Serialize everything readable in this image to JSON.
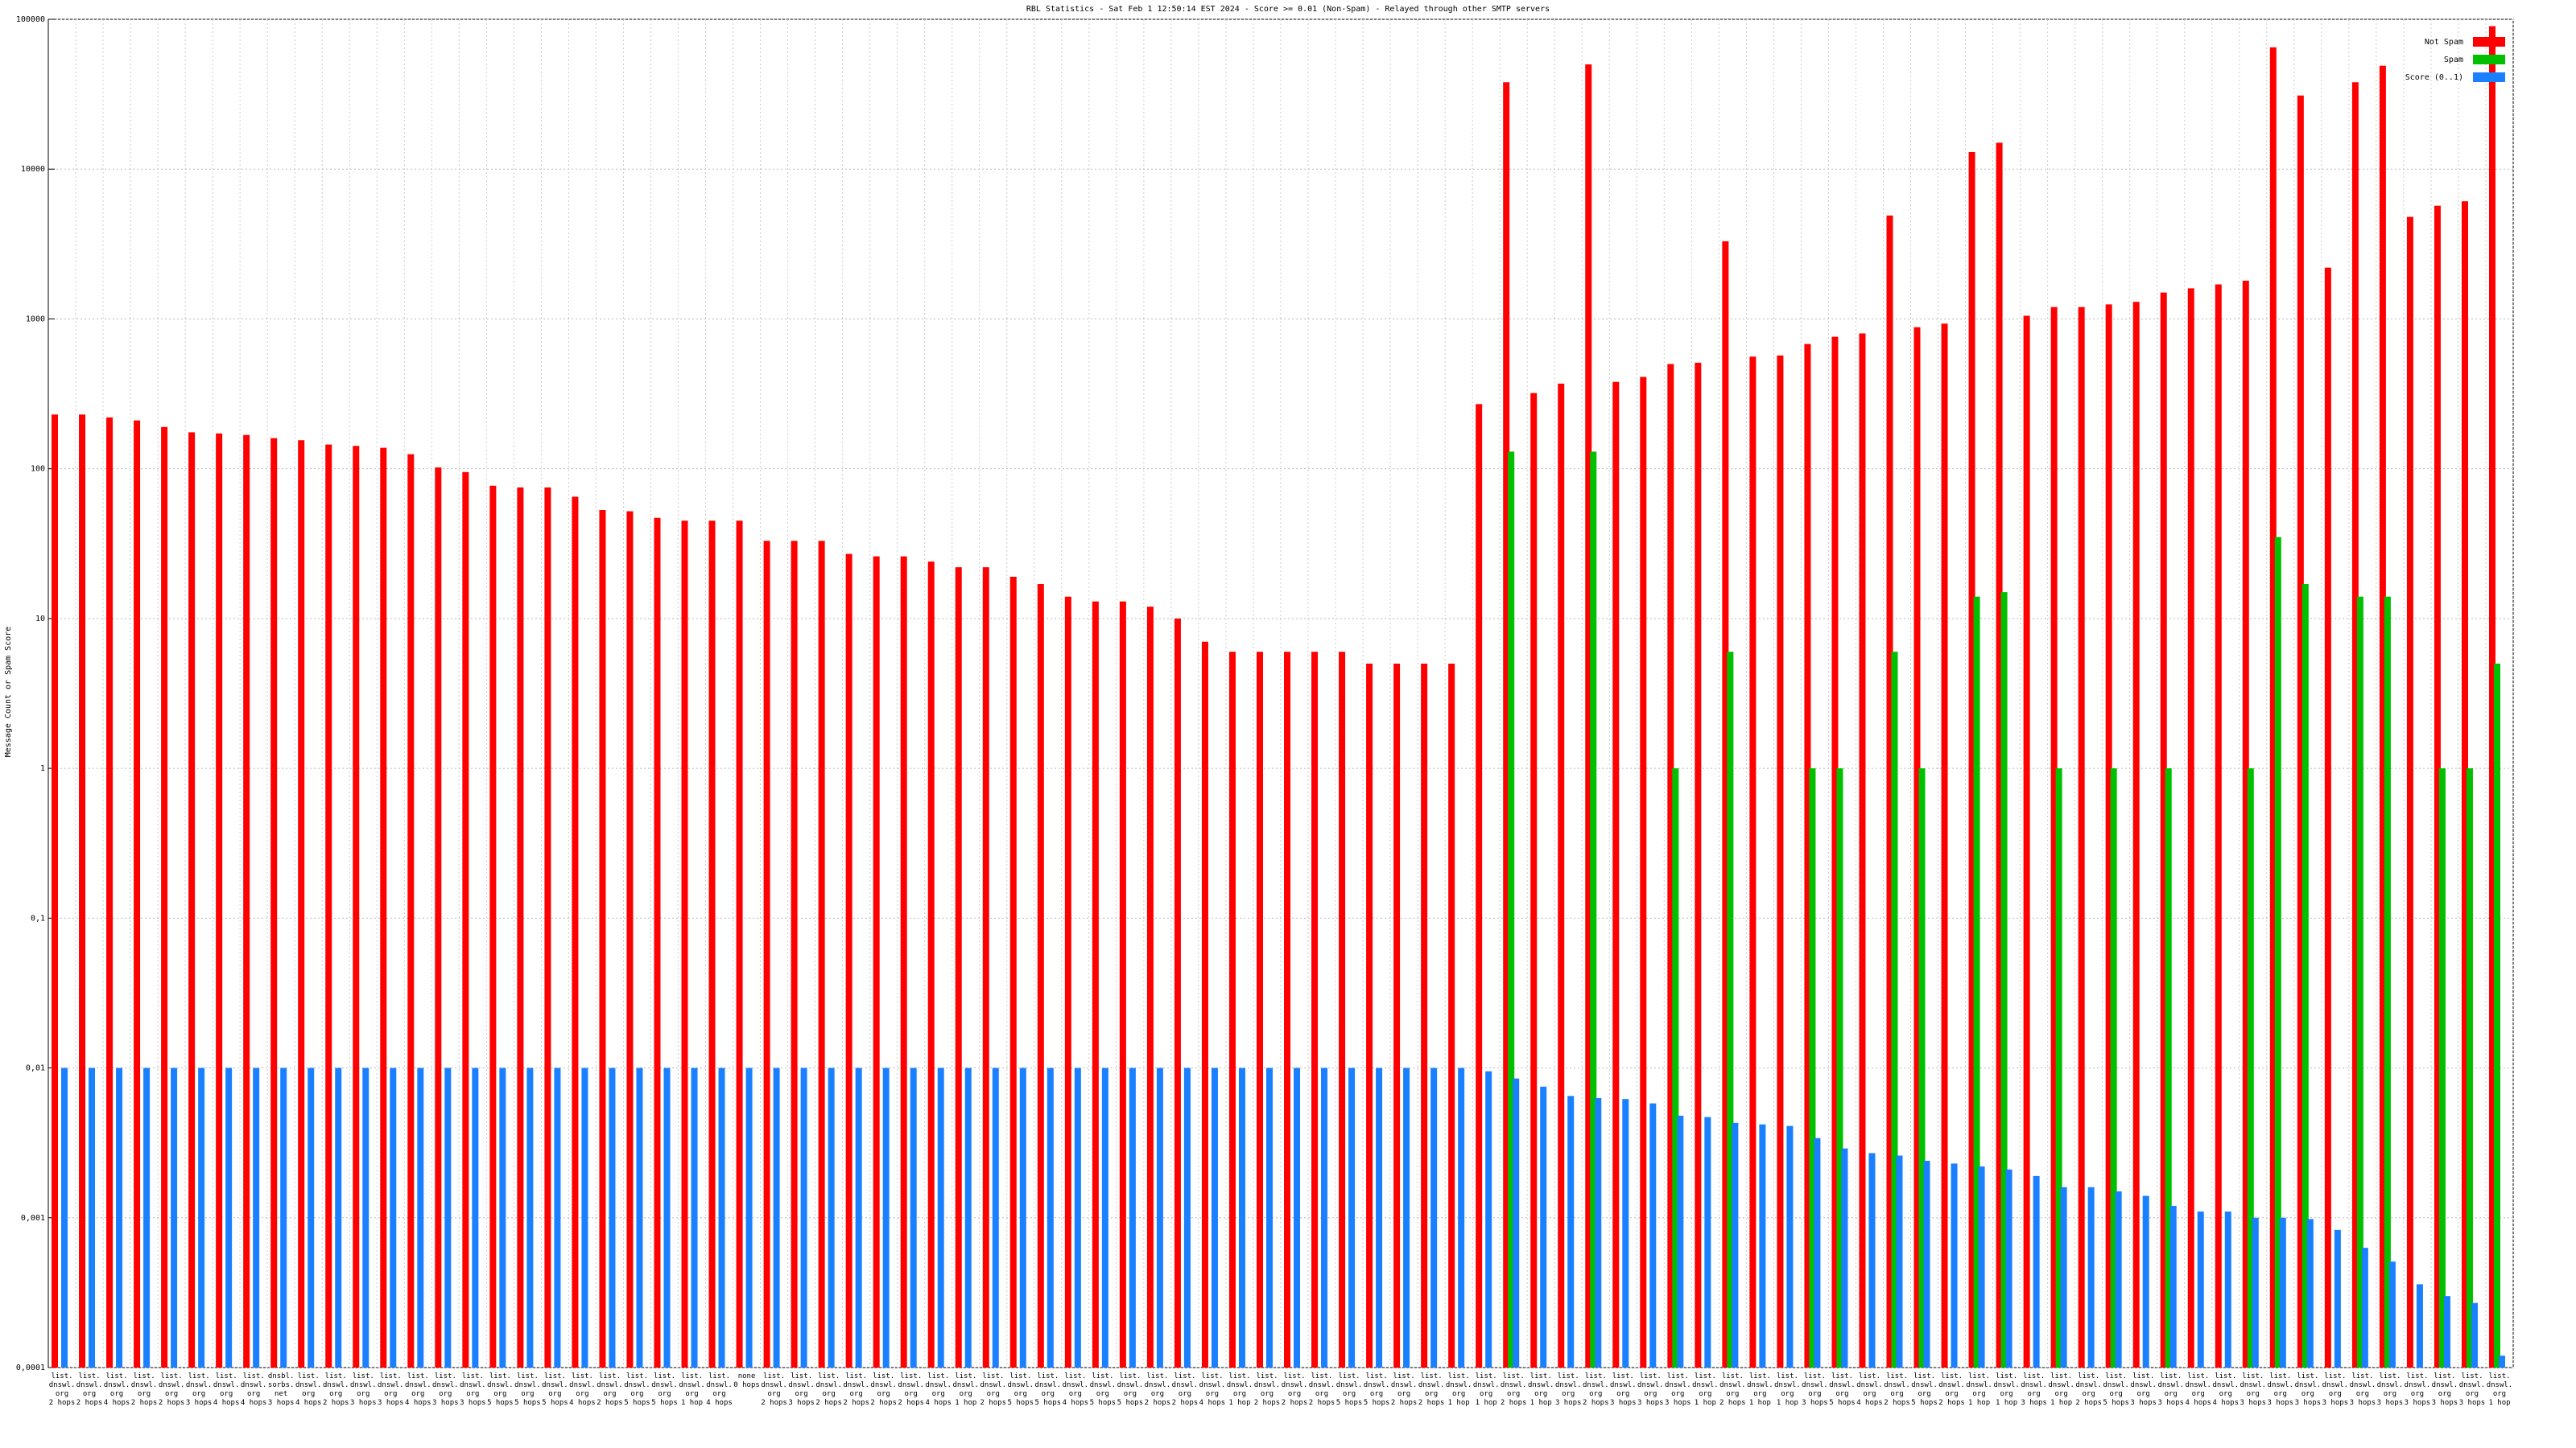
{
  "chart_data": {
    "type": "bar",
    "title": "RBL Statistics - Sat Feb  1 12:50:14 EST 2024 - Score >= 0.01 (Non-Spam) - Relayed through other SMTP servers",
    "y_label": "Message Count or Spam Score",
    "log_scale": true,
    "grid": true,
    "legend": "top-right",
    "ylim": [
      0.0001,
      100000
    ],
    "yticks": [
      {
        "value": 0.0001,
        "label": "0,0001"
      },
      {
        "value": 0.001,
        "label": "0,001"
      },
      {
        "value": 0.01,
        "label": "0,01"
      },
      {
        "value": 0.1,
        "label": "0,1"
      },
      1,
      10,
      100,
      1000,
      10000,
      100000
    ],
    "categories": [
      "list.\ndnswl.\norg\n2 hops",
      "list.\ndnswl.\norg\n2 hops",
      "list.\ndnswl.\norg\n4 hops",
      "list.\ndnswl.\norg\n2 hops",
      "list.\ndnswl.\norg\n2 hops",
      "list.\ndnswl.\norg\n3 hops",
      "list.\ndnswl.\norg\n4 hops",
      "list.\ndnswl.\norg\n4 hops",
      "dnsbl.\nsorbs.\nnet\n3 hops",
      "list.\ndnswl.\norg\n4 hops",
      "list.\ndnswl.\norg\n2 hops",
      "list.\ndnswl.\norg\n3 hops",
      "list.\ndnswl.\norg\n3 hops",
      "list.\ndnswl.\norg\n4 hops",
      "list.\ndnswl.\norg\n3 hops",
      "list.\ndnswl.\norg\n3 hops",
      "list.\ndnswl.\norg\n5 hops",
      "list.\ndnswl.\norg\n5 hops",
      "list.\ndnswl.\norg\n5 hops",
      "list.\ndnswl.\norg\n4 hops",
      "list.\ndnswl.\norg\n2 hops",
      "list.\ndnswl.\norg\n5 hops",
      "list.\ndnswl.\norg\n5 hops",
      "list.\ndnswl.\norg\n1 hop",
      "list.\ndnswl.\norg\n4 hops",
      "none\n0 hops",
      "list.\ndnswl.\norg\n2 hops",
      "list.\ndnswl.\norg\n3 hops",
      "list.\ndnswl.\norg\n2 hops",
      "list.\ndnswl.\norg\n2 hops",
      "list.\ndnswl.\norg\n2 hops",
      "list.\ndnswl.\norg\n2 hops",
      "list.\ndnswl.\norg\n4 hops",
      "list.\ndnswl.\norg\n1 hop",
      "list.\ndnswl.\norg\n2 hops",
      "list.\ndnswl.\norg\n5 hops",
      "list.\ndnswl.\norg\n5 hops",
      "list.\ndnswl.\norg\n4 hops",
      "list.\ndnswl.\norg\n5 hops",
      "list.\ndnswl.\norg\n5 hops",
      "list.\ndnswl.\norg\n2 hops",
      "list.\ndnswl.\norg\n2 hops",
      "list.\ndnswl.\norg\n4 hops",
      "list.\ndnswl.\norg\n1 hop",
      "list.\ndnswl.\norg\n2 hops",
      "list.\ndnswl.\norg\n2 hops",
      "list.\ndnswl.\norg\n2 hops",
      "list.\ndnswl.\norg\n5 hops",
      "list.\ndnswl.\norg\n5 hops",
      "list.\ndnswl.\norg\n2 hops",
      "list.\ndnswl.\norg\n2 hops",
      "list.\ndnswl.\norg\n1 hop",
      "list.\ndnswl.\norg\n1 hop",
      "list.\ndnswl.\norg\n2 hops",
      "list.\ndnswl.\norg\n1 hop",
      "list.\ndnswl.\norg\n3 hops",
      "list.\ndnswl.\norg\n2 hops",
      "list.\ndnswl.\norg\n3 hops",
      "list.\ndnswl.\norg\n3 hops",
      "list.\ndnswl.\norg\n3 hops",
      "list.\ndnswl.\norg\n1 hop",
      "list.\ndnswl.\norg\n2 hops",
      "list.\ndnswl.\norg\n1 hop",
      "list.\ndnswl.\norg\n1 hop",
      "list.\ndnswl.\norg\n3 hops",
      "list.\ndnswl.\norg\n5 hops",
      "list.\ndnswl.\norg\n4 hops",
      "list.\ndnswl.\norg\n2 hops",
      "list.\ndnswl.\norg\n5 hops",
      "list.\ndnswl.\norg\n2 hops",
      "list.\ndnswl.\norg\n1 hop",
      "list.\ndnswl.\norg\n1 hop",
      "list.\ndnswl.\norg\n3 hops",
      "list.\ndnswl.\norg\n1 hop",
      "list.\ndnswl.\norg\n2 hops",
      "list.\ndnswl.\norg\n5 hops",
      "list.\ndnswl.\norg\n3 hops",
      "list.\ndnswl.\norg\n3 hops",
      "list.\ndnswl.\norg\n4 hops",
      "list.\ndnswl.\norg\n4 hops",
      "list.\ndnswl.\norg\n3 hops",
      "list.\ndnswl.\norg\n3 hops",
      "list.\ndnswl.\norg\n3 hops",
      "list.\ndnswl.\norg\n3 hops",
      "list.\ndnswl.\norg\n3 hops",
      "list.\ndnswl.\norg\n3 hops",
      "list.\ndnswl.\norg\n3 hops",
      "list.\ndnswl.\norg\n3 hops",
      "list.\ndnswl.\norg\n3 hops",
      "list.\ndnswl.\norg\n1 hop"
    ],
    "series": [
      {
        "name": "Not Spam",
        "color": "#ff0000",
        "values": [
          230,
          230,
          220,
          210,
          190,
          175,
          172,
          168,
          160,
          155,
          145,
          142,
          138,
          125,
          102,
          95,
          77,
          75,
          75,
          65,
          53,
          52,
          47,
          45,
          45,
          45,
          33,
          33,
          33,
          27,
          26,
          26,
          24,
          22,
          22,
          19,
          17,
          14,
          13,
          13,
          12,
          10,
          7,
          6,
          6,
          6,
          6,
          6,
          5,
          5,
          5,
          5,
          270,
          38000,
          320,
          370,
          50000,
          380,
          410,
          500,
          510,
          3300,
          560,
          570,
          680,
          760,
          800,
          4900,
          880,
          930,
          13000,
          15000,
          1050,
          1200,
          1200,
          1250,
          1300,
          1500,
          1600,
          1700,
          1800,
          65000,
          31000,
          2200,
          38000,
          49000,
          4800,
          5700,
          6100,
          90000
        ]
      },
      {
        "name": "Spam",
        "color": "#00c000",
        "values": [
          null,
          null,
          null,
          null,
          null,
          null,
          null,
          null,
          null,
          null,
          null,
          null,
          null,
          null,
          null,
          null,
          null,
          null,
          null,
          null,
          null,
          null,
          null,
          null,
          null,
          null,
          null,
          null,
          null,
          null,
          null,
          null,
          null,
          null,
          null,
          null,
          null,
          null,
          null,
          null,
          null,
          null,
          null,
          null,
          null,
          null,
          null,
          null,
          null,
          null,
          null,
          null,
          null,
          130,
          null,
          null,
          130,
          null,
          null,
          1,
          null,
          6,
          null,
          null,
          1,
          1,
          null,
          6,
          1,
          null,
          14,
          15,
          null,
          1,
          null,
          1,
          null,
          1,
          null,
          null,
          1,
          35,
          17,
          null,
          14,
          14,
          null,
          1,
          1,
          5
        ]
      },
      {
        "name": "Score (0..1)",
        "color": "#1a80ff",
        "values": [
          0.01,
          0.01,
          0.01,
          0.01,
          0.01,
          0.01,
          0.01,
          0.01,
          0.01,
          0.01,
          0.01,
          0.01,
          0.01,
          0.01,
          0.01,
          0.01,
          0.01,
          0.01,
          0.01,
          0.01,
          0.01,
          0.01,
          0.01,
          0.01,
          0.01,
          0.01,
          0.01,
          0.01,
          0.01,
          0.01,
          0.01,
          0.01,
          0.01,
          0.01,
          0.01,
          0.01,
          0.01,
          0.01,
          0.01,
          0.01,
          0.01,
          0.01,
          0.01,
          0.01,
          0.01,
          0.01,
          0.01,
          0.01,
          0.01,
          0.01,
          0.01,
          0.01,
          0.0095,
          0.0085,
          0.0075,
          0.0065,
          0.0063,
          0.0062,
          0.0058,
          0.0048,
          0.0047,
          0.0043,
          0.0042,
          0.0041,
          0.0034,
          0.0029,
          0.0027,
          0.0026,
          0.0024,
          0.0023,
          0.0022,
          0.0021,
          0.0019,
          0.0016,
          0.0016,
          0.0015,
          0.0014,
          0.0012,
          0.0011,
          0.0011,
          0.001,
          0.001,
          0.00098,
          0.00083,
          0.00063,
          0.00051,
          0.00036,
          0.0003,
          0.00027,
          0.00012
        ]
      }
    ]
  }
}
